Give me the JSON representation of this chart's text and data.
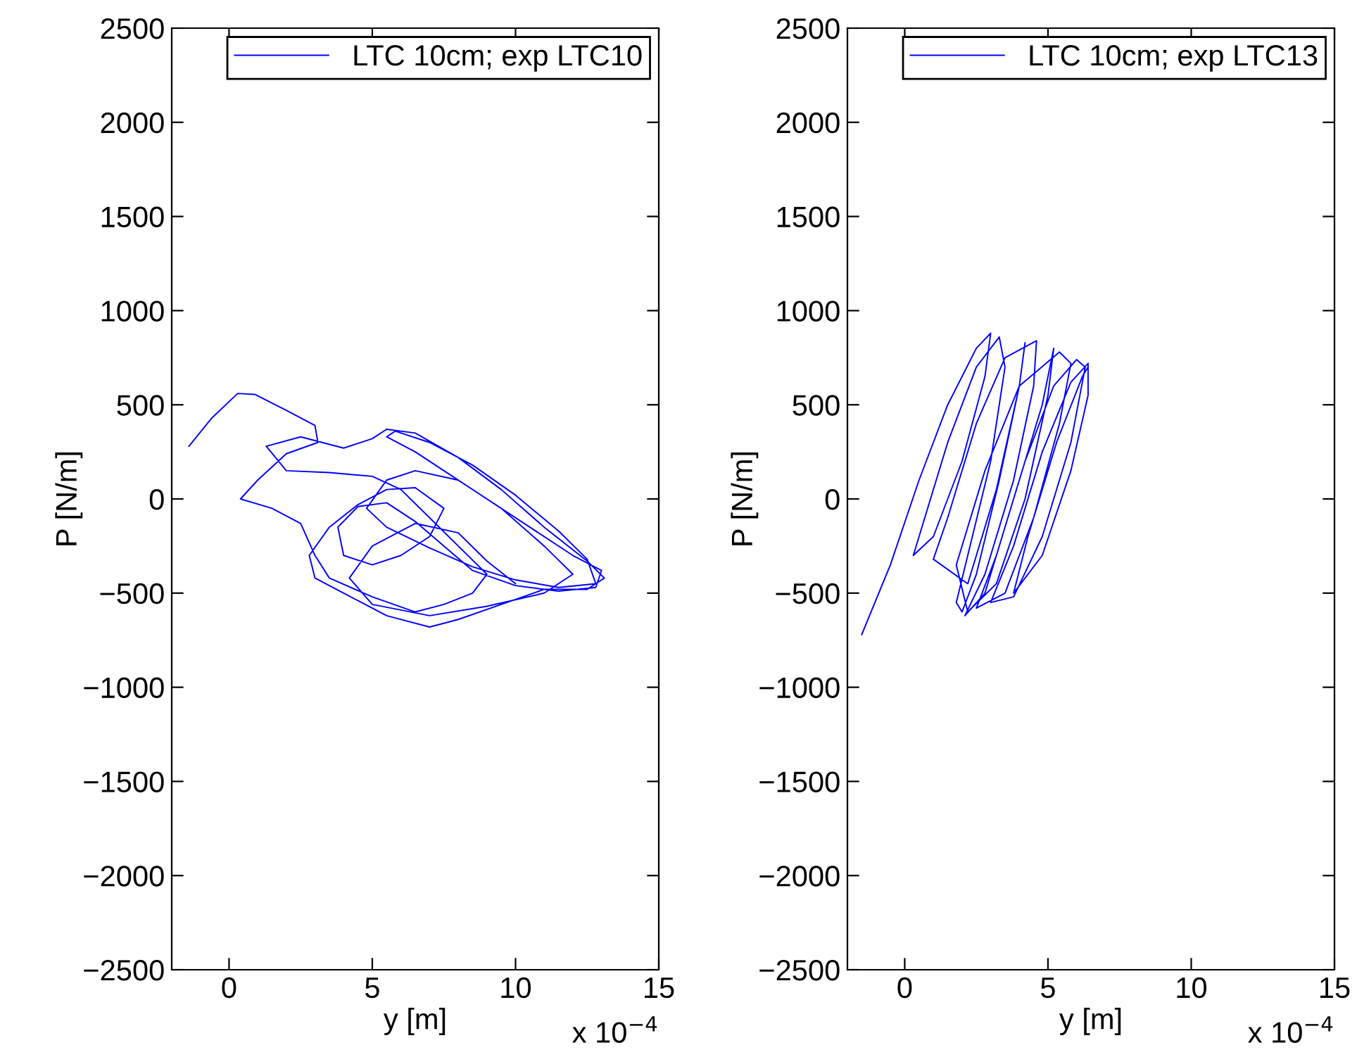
{
  "chart_data": [
    {
      "type": "line",
      "xlabel": "y [m]",
      "ylabel": "P [N/m]",
      "xlim": [
        -2,
        15
      ],
      "ylim": [
        -2500,
        2500
      ],
      "xticks": [
        0,
        5,
        10,
        15
      ],
      "yticks": [
        {
          "value": -2500,
          "label": "−2500"
        },
        {
          "value": -2000,
          "label": "−2000"
        },
        {
          "value": -1500,
          "label": "−1500"
        },
        {
          "value": -1000,
          "label": "−1000"
        },
        {
          "value": -500,
          "label": "−500"
        },
        0,
        500,
        1000,
        1500,
        2000,
        2500
      ],
      "grid": false,
      "legend": "top right",
      "annotations": [
        "x 10$^{−4}$"
      ],
      "series": [
        {
          "name": "LTC 10cm; exp LTC10",
          "color": "#0000ff",
          "x": [
            -1.4,
            -0.6,
            0.3,
            0.9,
            2.0,
            3.0,
            3.1,
            2.0,
            1.0,
            0.4,
            1.5,
            2.5,
            3.0,
            3.5,
            5.0,
            6.5,
            7.5,
            8.5,
            9.0,
            8.0,
            7.0,
            6.0,
            5.0,
            3.5,
            2.0,
            1.3,
            2.5,
            4.0,
            5.0,
            5.5,
            6.5,
            8.0,
            9.5,
            11.0,
            12.5,
            13.1,
            12.5,
            11.0,
            9.5,
            8.0,
            7.0,
            5.5,
            4.0,
            3.0,
            2.8,
            3.5,
            4.5,
            5.5,
            6.5,
            7.5,
            7.0,
            6.0,
            5.0,
            4.0,
            3.8,
            4.5,
            5.5,
            6.5,
            7.5,
            8.5,
            10.0,
            11.5,
            12.8,
            13.0,
            12.0,
            10.5,
            9.0,
            7.5,
            6.5,
            5.5,
            5.8,
            7.0,
            8.5,
            10.0,
            11.5,
            12.5,
            12.8,
            11.5,
            10.0,
            8.5,
            7.0,
            5.5,
            4.8,
            5.5,
            6.5,
            8.0,
            9.5,
            11.0,
            12.0,
            11.0,
            9.0,
            7.0,
            5.0,
            4.2,
            5.0,
            6.5,
            8.0,
            9.0,
            10.0
          ],
          "values": [
            280,
            430,
            560,
            555,
            470,
            390,
            300,
            240,
            100,
            0,
            -50,
            -130,
            -300,
            -420,
            -520,
            -600,
            -560,
            -500,
            -400,
            -250,
            -100,
            50,
            120,
            140,
            150,
            280,
            330,
            270,
            320,
            370,
            350,
            220,
            50,
            -150,
            -330,
            -420,
            -480,
            -480,
            -560,
            -640,
            -680,
            -620,
            -500,
            -420,
            -300,
            -150,
            -30,
            50,
            60,
            -50,
            -200,
            -300,
            -350,
            -300,
            -150,
            -40,
            -20,
            -120,
            -250,
            -380,
            -460,
            -490,
            -470,
            -380,
            -300,
            -150,
            0,
            150,
            250,
            330,
            360,
            300,
            180,
            20,
            -170,
            -320,
            -450,
            -470,
            -430,
            -360,
            -260,
            -150,
            -50,
            100,
            150,
            100,
            -50,
            -250,
            -400,
            -500,
            -570,
            -620,
            -560,
            -420,
            -250,
            -130,
            -180,
            -330,
            -450
          ]
        }
      ]
    },
    {
      "type": "line",
      "xlabel": "y [m]",
      "ylabel": "P [N/m]",
      "xlim": [
        -2,
        15
      ],
      "ylim": [
        -2500,
        2500
      ],
      "xticks": [
        0,
        5,
        10,
        15
      ],
      "yticks": [
        {
          "value": -2500,
          "label": "−2500"
        },
        {
          "value": -2000,
          "label": "−2000"
        },
        {
          "value": -1500,
          "label": "−1500"
        },
        {
          "value": -1000,
          "label": "−1000"
        },
        {
          "value": -500,
          "label": "−500"
        },
        0,
        500,
        1000,
        1500,
        2000,
        2500
      ],
      "grid": false,
      "legend": "top right",
      "annotations": [
        "x 10$^{−4}$"
      ],
      "series": [
        {
          "name": "LTC 10cm; exp LTC13",
          "color": "#0000ff",
          "x": [
            -1.5,
            -0.5,
            0.5,
            1.5,
            2.5,
            3.0,
            2.8,
            2.0,
            1.0,
            0.3,
            0.5,
            1.5,
            2.5,
            3.3,
            3.5,
            3.0,
            2.2,
            1.8,
            2.0,
            2.5,
            3.3,
            4.0,
            4.2,
            4.0,
            3.2,
            2.2,
            1.0,
            1.5,
            2.5,
            3.5,
            4.6,
            4.5,
            3.8,
            2.8,
            2.1,
            2.8,
            3.8,
            4.8,
            5.2,
            5.0,
            4.2,
            3.2,
            2.2,
            1.8,
            2.8,
            4.0,
            5.4,
            5.8,
            5.4,
            4.5,
            3.5,
            2.5,
            3.2,
            4.2,
            5.2,
            6.0,
            6.3,
            5.8,
            4.8,
            3.8,
            3.0,
            3.8,
            4.8,
            5.8,
            6.4,
            6.4,
            5.8,
            4.8,
            3.8,
            4.3,
            5.3,
            6.2,
            6.4
          ],
          "values": [
            -720,
            -350,
            100,
            500,
            800,
            880,
            650,
            200,
            -200,
            -300,
            -200,
            300,
            700,
            860,
            700,
            200,
            -300,
            -550,
            -600,
            -400,
            100,
            600,
            830,
            600,
            50,
            -450,
            -320,
            -100,
            400,
            750,
            840,
            600,
            100,
            -400,
            -620,
            -500,
            0,
            500,
            800,
            550,
            0,
            -450,
            -600,
            -350,
            150,
            600,
            780,
            720,
            400,
            -100,
            -500,
            -580,
            -300,
            200,
            600,
            740,
            700,
            300,
            -200,
            -520,
            -550,
            -250,
            250,
            620,
            720,
            550,
            150,
            -300,
            -500,
            -200,
            300,
            650,
            700
          ]
        }
      ]
    }
  ]
}
